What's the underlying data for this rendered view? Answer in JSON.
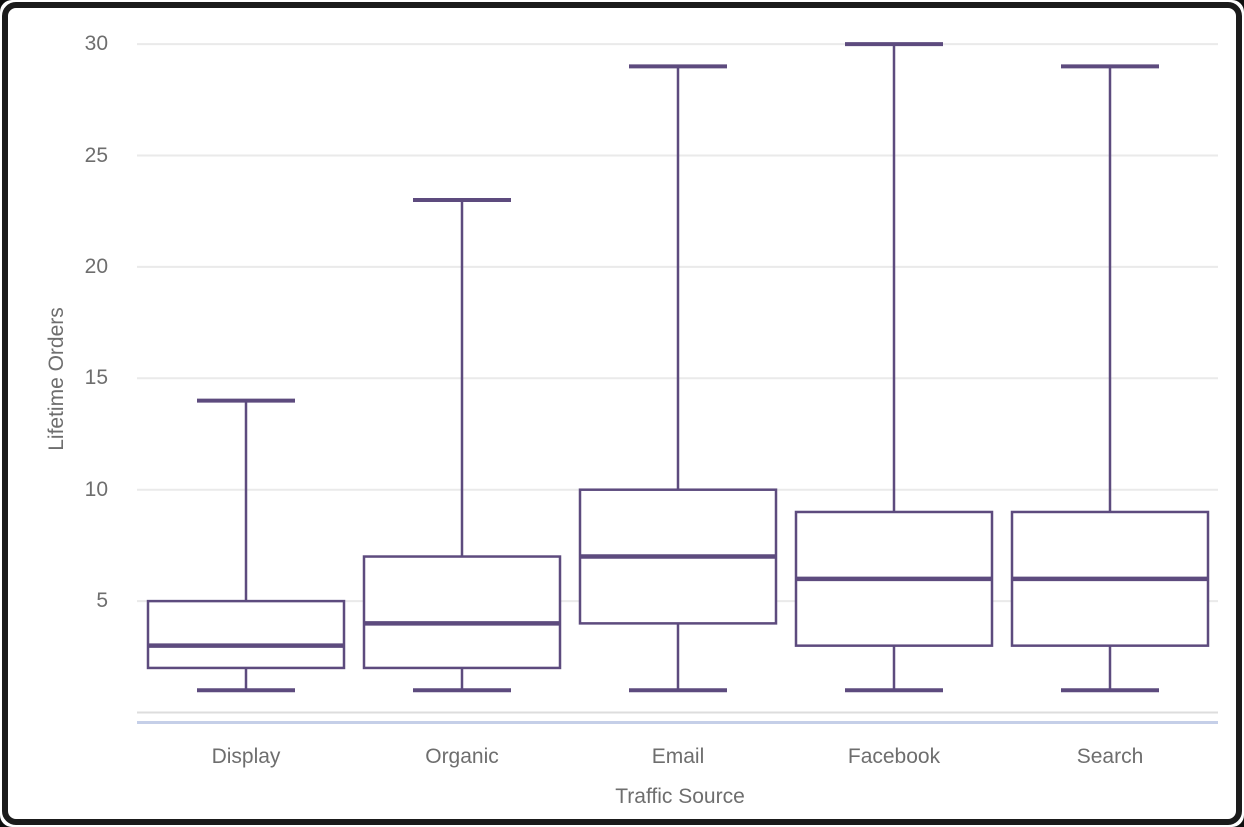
{
  "chart_data": {
    "type": "box",
    "title": "",
    "xlabel": "Traffic Source",
    "ylabel": "Lifetime Orders",
    "categories": [
      "Display",
      "Organic",
      "Email",
      "Facebook",
      "Search"
    ],
    "yticks": [
      5,
      10,
      15,
      20,
      25,
      30
    ],
    "ylim": [
      0,
      31
    ],
    "grid": true,
    "legend": "none",
    "series": [
      {
        "name": "Display",
        "min": 1,
        "q1": 2,
        "median": 3,
        "q3": 5,
        "max": 14
      },
      {
        "name": "Organic",
        "min": 1,
        "q1": 2,
        "median": 4,
        "q3": 7,
        "max": 23
      },
      {
        "name": "Email",
        "min": 1,
        "q1": 4,
        "median": 7,
        "q3": 10,
        "max": 29
      },
      {
        "name": "Facebook",
        "min": 1,
        "q1": 3,
        "median": 6,
        "q3": 9,
        "max": 30
      },
      {
        "name": "Search",
        "min": 1,
        "q1": 3,
        "median": 6,
        "q3": 9,
        "max": 29
      }
    ],
    "colors": {
      "box_stroke": "#5d4b7e",
      "box_fill": "#ffffff",
      "grid_line": "#eaeaea",
      "axis_baseline": "#dddddd",
      "accent_line": "#c5cfe8",
      "label_text": "#6e6e6e"
    }
  }
}
